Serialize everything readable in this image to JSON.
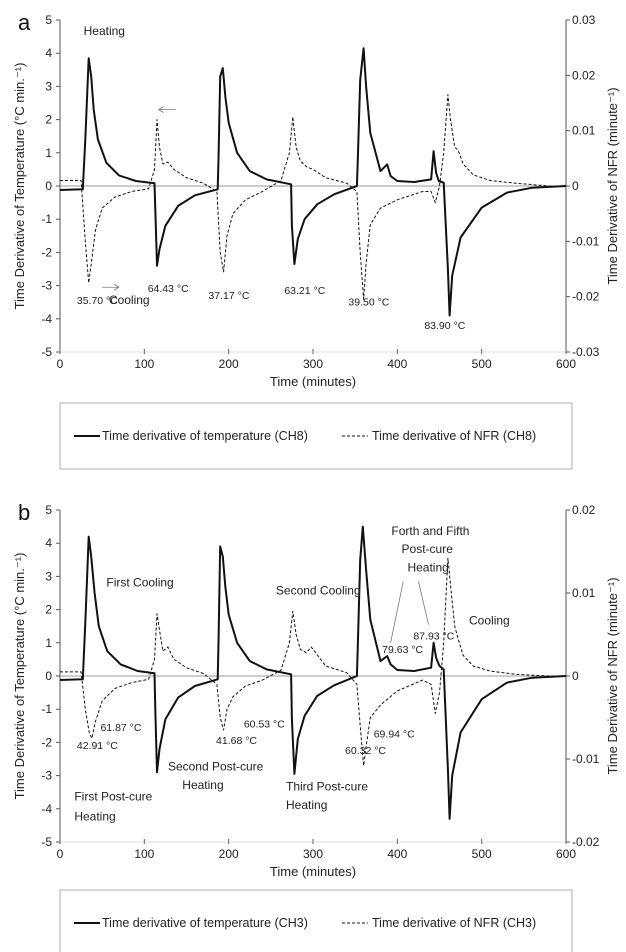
{
  "chart_data": [
    {
      "panel_label": "a",
      "type": "line",
      "xlabel": "Time (minutes)",
      "ylabel_left": "Time Derivative of Temperature (°C min.⁻¹)",
      "ylabel_right": "Time Derivative of NFR (minute⁻¹)",
      "xlim": [
        0,
        600
      ],
      "ylim_left": [
        -5,
        5
      ],
      "ylim_right": [
        -0.03,
        0.03
      ],
      "xticks": [
        "0",
        "100",
        "200",
        "300",
        "400",
        "500",
        "600"
      ],
      "yticks_left": [
        "5",
        "4",
        "3",
        "2",
        "1",
        "0",
        "-1",
        "-2",
        "-3",
        "-4",
        "-5"
      ],
      "yticks_right": [
        "0.03",
        "0.02",
        "0.01",
        "0",
        "-0.01",
        "-0.02",
        "-0.03"
      ],
      "series": [
        {
          "name": "Time derivative of temperature (CH8)",
          "axis": "left",
          "style": "solid",
          "x": [
            0,
            27,
            30,
            34,
            37,
            40,
            45,
            55,
            70,
            90,
            112,
            113,
            115,
            118,
            125,
            140,
            160,
            187,
            188,
            190,
            193,
            196,
            200,
            210,
            225,
            245,
            274,
            275,
            278,
            282,
            290,
            305,
            325,
            352,
            353,
            356,
            360,
            363,
            368,
            380,
            388,
            392,
            400,
            420,
            440,
            443,
            446,
            449,
            455,
            460,
            462,
            465,
            475,
            500,
            530,
            560,
            600
          ],
          "y": [
            -0.12,
            -0.1,
            1.4,
            3.85,
            3.3,
            2.3,
            1.4,
            0.7,
            0.32,
            0.15,
            0.08,
            -0.7,
            -2.4,
            -1.9,
            -1.2,
            -0.6,
            -0.28,
            -0.1,
            0.8,
            3.3,
            3.55,
            2.7,
            1.9,
            1.0,
            0.45,
            0.2,
            0.05,
            -1.2,
            -2.35,
            -1.6,
            -1.0,
            -0.55,
            -0.25,
            0.0,
            0.7,
            3.2,
            4.15,
            3.0,
            1.6,
            0.45,
            0.65,
            0.3,
            0.15,
            0.12,
            0.2,
            1.05,
            0.4,
            0.15,
            0.1,
            -2.5,
            -3.9,
            -2.7,
            -1.55,
            -0.65,
            -0.2,
            -0.05,
            0.0
          ]
        },
        {
          "name": "Time derivative of NFR (CH8)",
          "axis": "right",
          "style": "dashed",
          "x": [
            0,
            25,
            30,
            34,
            38,
            42,
            50,
            65,
            85,
            105,
            112,
            115,
            118,
            122,
            128,
            135,
            150,
            170,
            186,
            190,
            194,
            198,
            205,
            220,
            240,
            262,
            272,
            276,
            280,
            285,
            292,
            300,
            315,
            340,
            352,
            356,
            360,
            363,
            368,
            380,
            400,
            430,
            440,
            445,
            450,
            455,
            460,
            463,
            468,
            472,
            478,
            490,
            510,
            540,
            580,
            600
          ],
          "y": [
            0.001,
            0.001,
            -0.01,
            -0.0175,
            -0.013,
            -0.008,
            -0.004,
            -0.002,
            -0.001,
            -0.0005,
            0.003,
            0.012,
            0.007,
            0.004,
            0.0043,
            0.003,
            0.0015,
            0.0005,
            -0.001,
            -0.012,
            -0.0155,
            -0.009,
            -0.005,
            -0.0025,
            -0.001,
            0.001,
            0.006,
            0.0125,
            0.007,
            0.0045,
            0.0035,
            0.003,
            0.0015,
            0.0005,
            -0.001,
            -0.012,
            -0.0205,
            -0.014,
            -0.007,
            -0.004,
            -0.0025,
            -0.001,
            -0.001,
            -0.003,
            0.0,
            0.006,
            0.0165,
            0.012,
            0.007,
            0.0065,
            0.004,
            0.002,
            0.001,
            0.0005,
            0.0,
            0.0
          ]
        }
      ],
      "annotations": [
        {
          "text": "Heating",
          "x": 28,
          "y": 4.55
        },
        {
          "text": "Cooling",
          "x": 58,
          "y": -3.55
        },
        {
          "text": "35.70 °C",
          "x": 20,
          "y": -3.55
        },
        {
          "text": "64.43 °C",
          "x": 104,
          "y": -3.2
        },
        {
          "text": "37.17 °C",
          "x": 176,
          "y": -3.4
        },
        {
          "text": "63.21 °C",
          "x": 266,
          "y": -3.25
        },
        {
          "text": "39.50 °C",
          "x": 342,
          "y": -3.6
        },
        {
          "text": "83.90 °C",
          "x": 432,
          "y": -4.3
        }
      ],
      "legend": [
        "Time derivative of temperature (CH8)",
        "Time derivative of NFR (CH8)"
      ]
    },
    {
      "panel_label": "b",
      "type": "line",
      "xlabel": "Time (minutes)",
      "ylabel_left": "Time Derivative of Temperature (°C min.⁻¹)",
      "ylabel_right": "Time Derivative of NFR (minute⁻¹)",
      "xlim": [
        0,
        600
      ],
      "ylim_left": [
        -5,
        5
      ],
      "ylim_right": [
        -0.02,
        0.02
      ],
      "xticks": [
        "0",
        "100",
        "200",
        "300",
        "400",
        "500",
        "600"
      ],
      "yticks_left": [
        "5",
        "4",
        "3",
        "2",
        "1",
        "0",
        "-1",
        "-2",
        "-3",
        "-4",
        "-5"
      ],
      "yticks_right": [
        "0.02",
        "0.01",
        "0",
        "-0.01",
        "-0.02"
      ],
      "series": [
        {
          "name": "Time derivative of temperature (CH3)",
          "axis": "left",
          "style": "solid",
          "x": [
            0,
            27,
            30,
            34,
            37,
            41,
            46,
            56,
            72,
            92,
            112,
            113,
            115,
            118,
            125,
            140,
            160,
            187,
            188,
            190,
            193,
            196,
            200,
            210,
            225,
            245,
            274,
            275,
            278,
            282,
            290,
            305,
            325,
            352,
            353,
            356,
            359,
            363,
            368,
            380,
            388,
            392,
            400,
            420,
            440,
            443,
            446,
            450,
            455,
            460,
            462,
            465,
            475,
            500,
            530,
            560,
            600
          ],
          "y": [
            -0.12,
            -0.1,
            1.6,
            4.2,
            3.6,
            2.5,
            1.5,
            0.75,
            0.35,
            0.15,
            0.08,
            -1.0,
            -2.9,
            -2.2,
            -1.3,
            -0.65,
            -0.3,
            -0.1,
            1.0,
            3.9,
            3.6,
            2.7,
            1.85,
            1.0,
            0.45,
            0.2,
            0.05,
            -1.3,
            -2.95,
            -1.9,
            -1.2,
            -0.6,
            -0.28,
            0.0,
            0.8,
            3.5,
            4.5,
            3.2,
            1.7,
            0.45,
            0.6,
            0.35,
            0.18,
            0.15,
            0.25,
            1.0,
            0.55,
            0.3,
            0.2,
            -2.8,
            -4.3,
            -3.0,
            -1.7,
            -0.7,
            -0.2,
            -0.05,
            0.0
          ]
        },
        {
          "name": "Time derivative of NFR (CH3)",
          "axis": "right",
          "style": "dashed",
          "x": [
            0,
            25,
            30,
            35,
            38,
            42,
            50,
            65,
            85,
            105,
            112,
            115,
            118,
            122,
            128,
            135,
            150,
            170,
            186,
            190,
            194,
            198,
            205,
            220,
            240,
            262,
            272,
            276,
            280,
            285,
            292,
            298,
            315,
            340,
            352,
            356,
            360,
            363,
            368,
            380,
            400,
            430,
            440,
            445,
            450,
            455,
            460,
            463,
            468,
            472,
            478,
            490,
            510,
            540,
            580,
            600
          ],
          "y": [
            0.0005,
            0.0005,
            -0.004,
            -0.007,
            -0.0075,
            -0.0055,
            -0.003,
            -0.0015,
            -0.0008,
            -0.0004,
            0.002,
            0.0075,
            0.0055,
            0.003,
            0.0035,
            0.002,
            0.001,
            0.0003,
            -0.001,
            -0.005,
            -0.0065,
            -0.004,
            -0.0025,
            -0.0012,
            -0.0005,
            0.0007,
            0.004,
            0.0078,
            0.005,
            0.0032,
            0.0028,
            0.0035,
            0.0012,
            0.0004,
            -0.001,
            -0.006,
            -0.0108,
            -0.0085,
            -0.005,
            -0.0035,
            -0.0018,
            -0.0005,
            -0.001,
            -0.0045,
            -0.002,
            0.004,
            0.0142,
            0.011,
            0.006,
            0.0045,
            0.0025,
            0.0012,
            0.0006,
            0.0002,
            0.0,
            0.0
          ]
        }
      ],
      "annotations": [
        {
          "text": "First Cooling",
          "x": 55,
          "y": 2.7
        },
        {
          "text": "Second Cooling",
          "x": 256,
          "y": 2.45
        },
        {
          "text": "Cooling",
          "x": 485,
          "y": 1.55
        },
        {
          "text": "Forth and Fifth",
          "x": 393,
          "y": 4.25
        },
        {
          "text": "Post-cure",
          "x": 405,
          "y": 3.7
        },
        {
          "text": "Heating",
          "x": 412,
          "y": 3.15
        },
        {
          "text": "First Post-cure",
          "x": 17,
          "y": -3.75
        },
        {
          "text": "Heating",
          "x": 17,
          "y": -4.35
        },
        {
          "text": "Second Post-cure",
          "x": 128,
          "y": -2.85
        },
        {
          "text": "Heating",
          "x": 145,
          "y": -3.4
        },
        {
          "text": "Third Post-cure",
          "x": 268,
          "y": -3.45
        },
        {
          "text": "Heating",
          "x": 268,
          "y": -4.0
        },
        {
          "text": "42.91 °C",
          "x": 20,
          "y": -2.2
        },
        {
          "text": "61.87 °C",
          "x": 48,
          "y": -1.65
        },
        {
          "text": "41.68 °C",
          "x": 185,
          "y": -2.05
        },
        {
          "text": "60.53 °C",
          "x": 218,
          "y": -1.55
        },
        {
          "text": "60.32 °C",
          "x": 338,
          "y": -2.35
        },
        {
          "text": "69.94 °C",
          "x": 372,
          "y": -1.85
        },
        {
          "text": "79.63 °C",
          "x": 382,
          "y": 0.7
        },
        {
          "text": "87.93 °C",
          "x": 419,
          "y": 1.1
        }
      ],
      "legend": [
        "Time derivative of temperature (CH3)",
        "Time derivative of NFR (CH3)"
      ]
    }
  ]
}
